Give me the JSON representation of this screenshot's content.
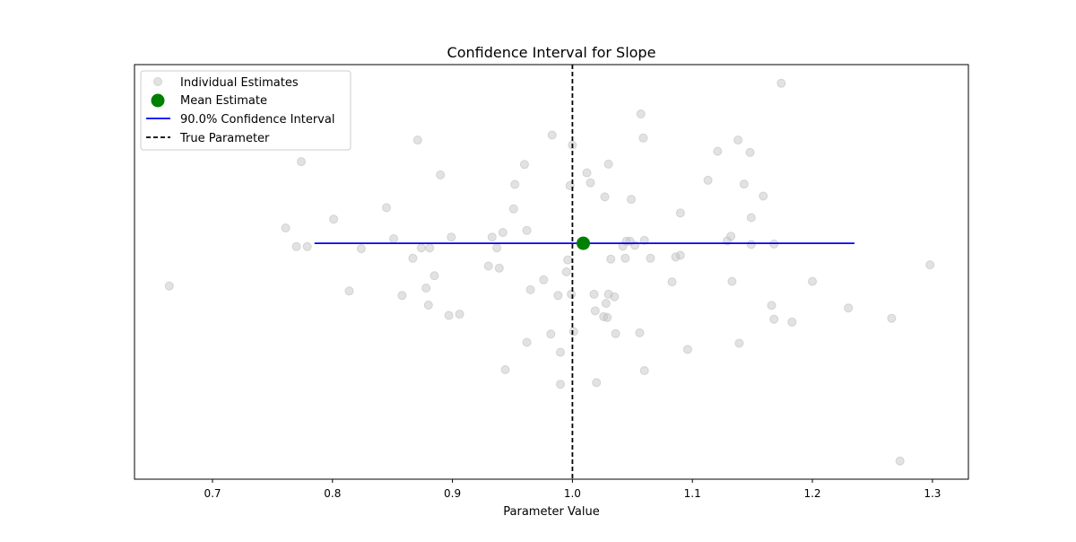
{
  "chart_data": {
    "type": "scatter",
    "title": "Confidence Interval for Slope",
    "xlabel": "Parameter Value",
    "ylabel": "",
    "xlim": [
      0.635,
      1.33
    ],
    "ylim": [
      0,
      1
    ],
    "xticks": [
      0.7,
      0.8,
      0.9,
      1.0,
      1.1,
      1.2,
      1.3
    ],
    "xtick_labels": [
      "0.7",
      "0.8",
      "0.9",
      "1.0",
      "1.1",
      "1.2",
      "1.3"
    ],
    "grid": false,
    "legend_position": "top-left",
    "legend": [
      {
        "label": "Individual Estimates",
        "kind": "point",
        "color": "#bfbfbf"
      },
      {
        "label": "Mean Estimate",
        "kind": "big-point",
        "color": "#008000"
      },
      {
        "label": "90.0% Confidence Interval",
        "kind": "line",
        "color": "#0000ff"
      },
      {
        "label": "True Parameter",
        "kind": "dashed-line",
        "color": "#000000"
      }
    ],
    "colors": {
      "points": "#bfbfbf",
      "mean": "#008000",
      "interval": "#0000ff",
      "true_line": "#000000"
    },
    "mean_estimate": {
      "x": 1.009,
      "y": 0.569
    },
    "confidence_interval": {
      "level": "90.0%",
      "low": 0.785,
      "high": 1.235,
      "y": 0.569
    },
    "true_parameter": 1.0,
    "points": [
      {
        "x": 0.664,
        "y": 0.466
      },
      {
        "x": 0.761,
        "y": 0.606
      },
      {
        "x": 0.77,
        "y": 0.561
      },
      {
        "x": 0.774,
        "y": 0.766
      },
      {
        "x": 0.779,
        "y": 0.561
      },
      {
        "x": 0.801,
        "y": 0.627
      },
      {
        "x": 0.814,
        "y": 0.454
      },
      {
        "x": 0.824,
        "y": 0.556
      },
      {
        "x": 0.845,
        "y": 0.655
      },
      {
        "x": 0.851,
        "y": 0.58
      },
      {
        "x": 0.858,
        "y": 0.443
      },
      {
        "x": 0.867,
        "y": 0.533
      },
      {
        "x": 0.871,
        "y": 0.818
      },
      {
        "x": 0.874,
        "y": 0.558
      },
      {
        "x": 0.878,
        "y": 0.461
      },
      {
        "x": 0.88,
        "y": 0.42
      },
      {
        "x": 0.881,
        "y": 0.558
      },
      {
        "x": 0.885,
        "y": 0.491
      },
      {
        "x": 0.89,
        "y": 0.734
      },
      {
        "x": 0.897,
        "y": 0.395
      },
      {
        "x": 0.899,
        "y": 0.584
      },
      {
        "x": 0.906,
        "y": 0.398
      },
      {
        "x": 0.93,
        "y": 0.514
      },
      {
        "x": 0.933,
        "y": 0.584
      },
      {
        "x": 0.937,
        "y": 0.558
      },
      {
        "x": 0.939,
        "y": 0.509
      },
      {
        "x": 0.942,
        "y": 0.595
      },
      {
        "x": 0.944,
        "y": 0.264
      },
      {
        "x": 0.951,
        "y": 0.652
      },
      {
        "x": 0.952,
        "y": 0.711
      },
      {
        "x": 0.96,
        "y": 0.759
      },
      {
        "x": 0.962,
        "y": 0.6
      },
      {
        "x": 0.962,
        "y": 0.33
      },
      {
        "x": 0.965,
        "y": 0.457
      },
      {
        "x": 0.976,
        "y": 0.481
      },
      {
        "x": 0.982,
        "y": 0.35
      },
      {
        "x": 0.983,
        "y": 0.83
      },
      {
        "x": 0.988,
        "y": 0.443
      },
      {
        "x": 0.99,
        "y": 0.306
      },
      {
        "x": 0.99,
        "y": 0.229
      },
      {
        "x": 0.995,
        "y": 0.5
      },
      {
        "x": 0.996,
        "y": 0.529
      },
      {
        "x": 0.998,
        "y": 0.708
      },
      {
        "x": 0.999,
        "y": 0.446
      },
      {
        "x": 1.0,
        "y": 0.806
      },
      {
        "x": 1.001,
        "y": 0.356
      },
      {
        "x": 1.012,
        "y": 0.739
      },
      {
        "x": 1.015,
        "y": 0.715
      },
      {
        "x": 1.018,
        "y": 0.446
      },
      {
        "x": 1.019,
        "y": 0.406
      },
      {
        "x": 1.02,
        "y": 0.233
      },
      {
        "x": 1.026,
        "y": 0.392
      },
      {
        "x": 1.027,
        "y": 0.681
      },
      {
        "x": 1.028,
        "y": 0.424
      },
      {
        "x": 1.029,
        "y": 0.39
      },
      {
        "x": 1.03,
        "y": 0.76
      },
      {
        "x": 1.03,
        "y": 0.446
      },
      {
        "x": 1.032,
        "y": 0.531
      },
      {
        "x": 1.035,
        "y": 0.44
      },
      {
        "x": 1.036,
        "y": 0.351
      },
      {
        "x": 1.042,
        "y": 0.562
      },
      {
        "x": 1.044,
        "y": 0.533
      },
      {
        "x": 1.045,
        "y": 0.574
      },
      {
        "x": 1.048,
        "y": 0.574
      },
      {
        "x": 1.049,
        "y": 0.675
      },
      {
        "x": 1.052,
        "y": 0.564
      },
      {
        "x": 1.056,
        "y": 0.353
      },
      {
        "x": 1.057,
        "y": 0.881
      },
      {
        "x": 1.059,
        "y": 0.823
      },
      {
        "x": 1.06,
        "y": 0.262
      },
      {
        "x": 1.06,
        "y": 0.576
      },
      {
        "x": 1.065,
        "y": 0.533
      },
      {
        "x": 1.083,
        "y": 0.476
      },
      {
        "x": 1.086,
        "y": 0.536
      },
      {
        "x": 1.09,
        "y": 0.54
      },
      {
        "x": 1.09,
        "y": 0.642
      },
      {
        "x": 1.096,
        "y": 0.313
      },
      {
        "x": 1.113,
        "y": 0.721
      },
      {
        "x": 1.121,
        "y": 0.791
      },
      {
        "x": 1.129,
        "y": 0.575
      },
      {
        "x": 1.132,
        "y": 0.586
      },
      {
        "x": 1.133,
        "y": 0.477
      },
      {
        "x": 1.138,
        "y": 0.818
      },
      {
        "x": 1.139,
        "y": 0.328
      },
      {
        "x": 1.143,
        "y": 0.712
      },
      {
        "x": 1.148,
        "y": 0.788
      },
      {
        "x": 1.149,
        "y": 0.631
      },
      {
        "x": 1.149,
        "y": 0.566
      },
      {
        "x": 1.159,
        "y": 0.683
      },
      {
        "x": 1.166,
        "y": 0.419
      },
      {
        "x": 1.168,
        "y": 0.386
      },
      {
        "x": 1.168,
        "y": 0.567
      },
      {
        "x": 1.174,
        "y": 0.955
      },
      {
        "x": 1.183,
        "y": 0.379
      },
      {
        "x": 1.2,
        "y": 0.477
      },
      {
        "x": 1.23,
        "y": 0.413
      },
      {
        "x": 1.266,
        "y": 0.388
      },
      {
        "x": 1.273,
        "y": 0.044
      },
      {
        "x": 1.298,
        "y": 0.517
      }
    ]
  }
}
